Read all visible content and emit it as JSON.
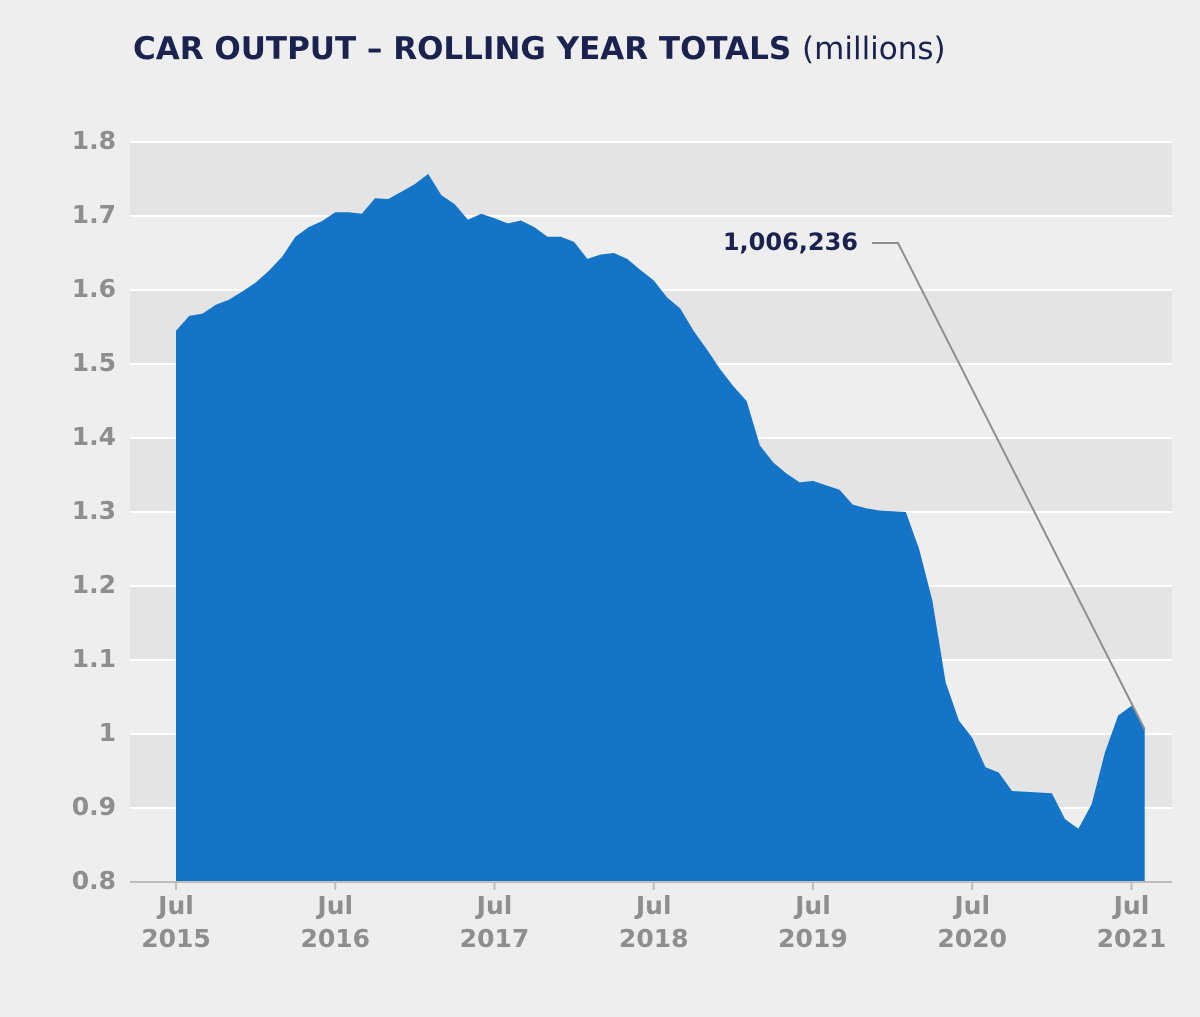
{
  "chart_data": {
    "type": "area",
    "title": "CAR OUTPUT – ROLLING YEAR TOTALS",
    "subtitle": "(millions)",
    "color": "#1474c8",
    "x": [
      "2015-07",
      "2015-08",
      "2015-09",
      "2015-10",
      "2015-11",
      "2015-12",
      "2016-01",
      "2016-02",
      "2016-03",
      "2016-04",
      "2016-05",
      "2016-06",
      "2016-07",
      "2016-08",
      "2016-09",
      "2016-10",
      "2016-11",
      "2016-12",
      "2017-01",
      "2017-02",
      "2017-03",
      "2017-04",
      "2017-05",
      "2017-06",
      "2017-07",
      "2017-08",
      "2017-09",
      "2017-10",
      "2017-11",
      "2017-12",
      "2018-01",
      "2018-02",
      "2018-03",
      "2018-04",
      "2018-05",
      "2018-06",
      "2018-07",
      "2018-08",
      "2018-09",
      "2018-10",
      "2018-11",
      "2018-12",
      "2019-01",
      "2019-02",
      "2019-03",
      "2019-04",
      "2019-05",
      "2019-06",
      "2019-07",
      "2019-08",
      "2019-09",
      "2019-10",
      "2019-11",
      "2019-12",
      "2020-01",
      "2020-02",
      "2020-03",
      "2020-04",
      "2020-05",
      "2020-06",
      "2020-07",
      "2020-08",
      "2020-09",
      "2020-10",
      "2020-11",
      "2020-12",
      "2021-01",
      "2021-02",
      "2021-03",
      "2021-04",
      "2021-05",
      "2021-06",
      "2021-07",
      "2021-08"
    ],
    "values": [
      1.545,
      1.565,
      1.568,
      1.58,
      1.587,
      1.598,
      1.61,
      1.626,
      1.645,
      1.672,
      1.685,
      1.693,
      1.705,
      1.705,
      1.703,
      1.724,
      1.723,
      1.733,
      1.743,
      1.757,
      1.728,
      1.716,
      1.695,
      1.703,
      1.697,
      1.69,
      1.694,
      1.685,
      1.672,
      1.672,
      1.665,
      1.642,
      1.648,
      1.65,
      1.642,
      1.627,
      1.613,
      1.59,
      1.575,
      1.545,
      1.52,
      1.493,
      1.47,
      1.45,
      1.39,
      1.367,
      1.352,
      1.34,
      1.342,
      1.336,
      1.33,
      1.31,
      1.305,
      1.302,
      1.301,
      1.3,
      1.25,
      1.18,
      1.07,
      1.018,
      0.995,
      0.955,
      0.948,
      0.923,
      0.922,
      0.921,
      0.92,
      0.885,
      0.872,
      0.905,
      0.975,
      1.025,
      1.038,
      1.006236
    ],
    "value_labels": [
      null,
      null,
      null,
      null,
      null,
      null,
      null,
      null,
      null,
      null,
      null,
      null,
      null,
      null,
      null,
      null,
      null,
      null,
      null,
      null,
      null,
      null,
      null,
      null,
      null,
      null,
      null,
      null,
      null,
      null,
      null,
      null,
      null,
      null,
      null,
      null,
      null,
      null,
      null,
      null,
      null,
      null,
      null,
      null,
      null,
      null,
      null,
      null,
      null,
      null,
      null,
      null,
      null,
      null,
      null,
      null,
      null,
      null,
      null,
      null,
      null,
      null,
      null,
      null,
      null,
      null,
      null,
      null,
      null,
      null,
      null,
      null,
      null,
      "1,006,236"
    ],
    "ylim": [
      0.8,
      1.8
    ],
    "yticks": [
      0.8,
      0.9,
      1,
      1.1,
      1.2,
      1.3,
      1.4,
      1.5,
      1.6,
      1.7,
      1.8
    ],
    "xticks": [
      {
        "value": "2015-07",
        "label": [
          "Jul",
          "2015"
        ]
      },
      {
        "value": "2016-07",
        "label": [
          "Jul",
          "2016"
        ]
      },
      {
        "value": "2017-07",
        "label": [
          "Jul",
          "2017"
        ]
      },
      {
        "value": "2018-07",
        "label": [
          "Jul",
          "2018"
        ]
      },
      {
        "value": "2019-07",
        "label": [
          "Jul",
          "2019"
        ]
      },
      {
        "value": "2020-07",
        "label": [
          "Jul",
          "2020"
        ]
      },
      {
        "value": "2021-07",
        "label": [
          "Jul",
          "2021"
        ]
      }
    ],
    "grid": true
  }
}
